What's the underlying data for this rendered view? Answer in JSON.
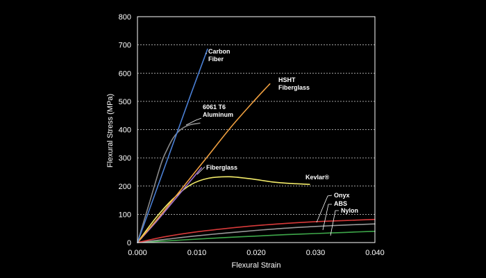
{
  "chart_data": {
    "type": "line",
    "title": "",
    "xlabel": "Flexural Strain",
    "ylabel": "Flexural Stress (MPa)",
    "xlim": [
      0,
      0.04
    ],
    "ylim": [
      0,
      800
    ],
    "x_ticks": [
      "0.000",
      "0.010",
      "0.020",
      "0.030",
      "0.040"
    ],
    "y_ticks": [
      "0",
      "100",
      "200",
      "300",
      "400",
      "500",
      "600",
      "700",
      "800"
    ],
    "grid": "horizontal dashed",
    "legend": "inline labels",
    "background": "#000000",
    "series": [
      {
        "name": "Carbon Fiber",
        "label_lines": [
          "Carbon",
          "Fiber"
        ],
        "color": "#4a7fd4",
        "x": [
          0,
          0.003,
          0.006,
          0.009,
          0.0118
        ],
        "y": [
          0,
          175,
          350,
          525,
          685
        ]
      },
      {
        "name": "HSHT Fiberglass",
        "label_lines": [
          "HSHT",
          "Fiberglass"
        ],
        "color": "#f0a040",
        "x": [
          0,
          0.004,
          0.008,
          0.012,
          0.016,
          0.02,
          0.0223
        ],
        "y": [
          0,
          100,
          205,
          310,
          415,
          510,
          562
        ]
      },
      {
        "name": "6061 T6 Aluminum",
        "label_lines": [
          "6061 T6",
          "Aluminum"
        ],
        "color": "#8a8a8a",
        "x": [
          0,
          0.002,
          0.004,
          0.005,
          0.006,
          0.007,
          0.008,
          0.009,
          0.0105
        ],
        "y": [
          0,
          140,
          280,
          330,
          370,
          395,
          410,
          418,
          423
        ]
      },
      {
        "name": "Fiberglass",
        "label_lines": [
          "Fiberglass"
        ],
        "color": "#a070d0",
        "x": [
          0,
          0.003,
          0.006,
          0.009,
          0.0108
        ],
        "y": [
          0,
          70,
          145,
          220,
          265
        ]
      },
      {
        "name": "Kevlar®",
        "label_lines": [
          "Kevlar®"
        ],
        "color": "#f4ec6a",
        "x": [
          0,
          0.003,
          0.006,
          0.009,
          0.012,
          0.0155,
          0.019,
          0.023,
          0.026,
          0.029
        ],
        "y": [
          0,
          85,
          155,
          205,
          228,
          233,
          226,
          214,
          209,
          206
        ]
      },
      {
        "name": "Onyx",
        "label_lines": [
          "Onyx"
        ],
        "color": "#d83a3a",
        "x": [
          0,
          0.005,
          0.01,
          0.015,
          0.02,
          0.025,
          0.03,
          0.035,
          0.04
        ],
        "y": [
          0,
          22,
          38,
          50,
          60,
          68,
          74,
          78,
          82
        ]
      },
      {
        "name": "ABS",
        "label_lines": [
          "ABS"
        ],
        "color": "#9a9a9a",
        "x": [
          0,
          0.005,
          0.01,
          0.015,
          0.02,
          0.025,
          0.03,
          0.035,
          0.04
        ],
        "y": [
          0,
          12,
          24,
          34,
          43,
          51,
          57,
          62,
          66
        ]
      },
      {
        "name": "Nylon",
        "label_lines": [
          "Nylon"
        ],
        "color": "#3ea84a",
        "x": [
          0,
          0.005,
          0.01,
          0.015,
          0.02,
          0.025,
          0.03,
          0.035,
          0.04
        ],
        "y": [
          0,
          6,
          12,
          18,
          23,
          28,
          32,
          36,
          40
        ]
      }
    ]
  }
}
